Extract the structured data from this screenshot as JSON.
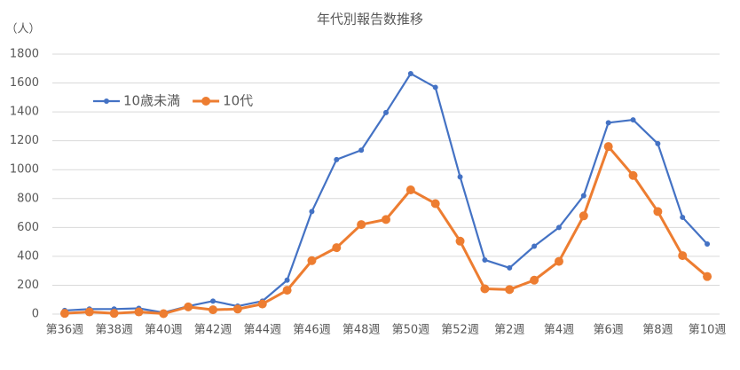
{
  "chart_data": {
    "type": "line",
    "title": "年代別報告数推移",
    "y_label": "（人）",
    "categories": [
      "第36週",
      null,
      "第38週",
      null,
      "第40週",
      null,
      "第42週",
      null,
      "第44週",
      null,
      "第46週",
      null,
      "第48週",
      null,
      "第50週",
      null,
      "第52週",
      null,
      "第2週",
      null,
      "第4週",
      null,
      "第6週",
      null,
      "第8週",
      null,
      "第10週"
    ],
    "series": [
      {
        "name": "10歳未満",
        "color": "#4472c4",
        "values": [
          25,
          35,
          35,
          40,
          10,
          55,
          90,
          55,
          90,
          235,
          710,
          1070,
          1135,
          1395,
          1665,
          1570,
          950,
          375,
          320,
          470,
          600,
          820,
          1325,
          1345,
          1180,
          670,
          485
        ]
      },
      {
        "name": "10代",
        "color": "#ed7d31",
        "values": [
          5,
          15,
          5,
          15,
          3,
          50,
          30,
          35,
          70,
          165,
          370,
          460,
          620,
          655,
          860,
          765,
          505,
          175,
          170,
          235,
          365,
          680,
          1160,
          960,
          710,
          405,
          260
        ]
      }
    ],
    "ylim": [
      0,
      1800
    ],
    "yticks": [
      0,
      200,
      400,
      600,
      800,
      1000,
      1200,
      1400,
      1600,
      1800
    ],
    "grid": true,
    "legend": "upper left"
  }
}
